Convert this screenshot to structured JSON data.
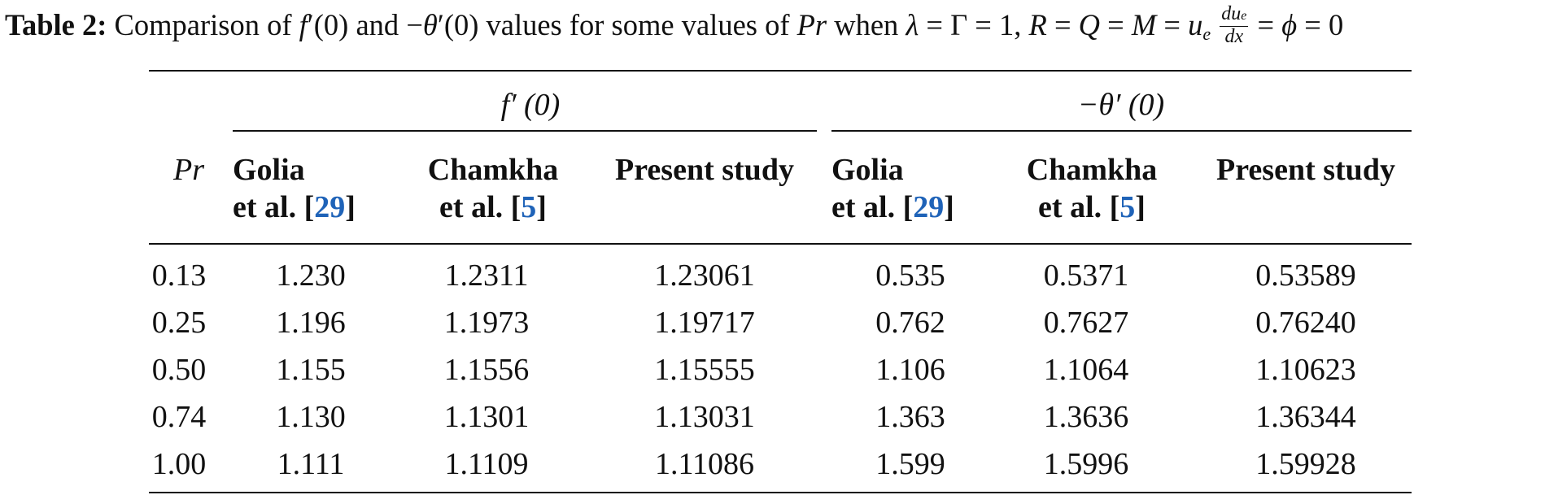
{
  "caption": {
    "label": "Table 2:",
    "text": "Comparison of f′(0) and −θ′(0) values for some values of Pr when λ = Γ = 1, R = Q = M = u_e du_e/dx = ϕ = 0"
  },
  "table": {
    "group_headers": [
      "f′ (0)",
      "−θ′ (0)"
    ],
    "row_header": "Pr",
    "column_headers": [
      {
        "line1": "Golia",
        "line2_prefix": "et al. [",
        "ref": "29",
        "line2_suffix": "]"
      },
      {
        "line1": "Chamkha",
        "line2_prefix": "et al. [",
        "ref": "5",
        "line2_suffix": "]"
      },
      {
        "line1": "Present study",
        "line2_prefix": "",
        "ref": "",
        "line2_suffix": ""
      },
      {
        "line1": "Golia",
        "line2_prefix": "et al. [",
        "ref": "29",
        "line2_suffix": "]"
      },
      {
        "line1": "Chamkha",
        "line2_prefix": "et al. [",
        "ref": "5",
        "line2_suffix": "]"
      },
      {
        "line1": "Present study",
        "line2_prefix": "",
        "ref": "",
        "line2_suffix": ""
      }
    ],
    "rows": [
      [
        "0.13",
        "1.230",
        "1.2311",
        "1.23061",
        "0.535",
        "0.5371",
        "0.53589"
      ],
      [
        "0.25",
        "1.196",
        "1.1973",
        "1.19717",
        "0.762",
        "0.7627",
        "0.76240"
      ],
      [
        "0.50",
        "1.155",
        "1.1556",
        "1.15555",
        "1.106",
        "1.1064",
        "1.10623"
      ],
      [
        "0.74",
        "1.130",
        "1.1301",
        "1.13031",
        "1.363",
        "1.3636",
        "1.36344"
      ],
      [
        "1.00",
        "1.111",
        "1.1109",
        "1.11086",
        "1.599",
        "1.5996",
        "1.59928"
      ]
    ]
  },
  "colors": {
    "text": "#111111",
    "reference_link": "#1f63b8"
  }
}
